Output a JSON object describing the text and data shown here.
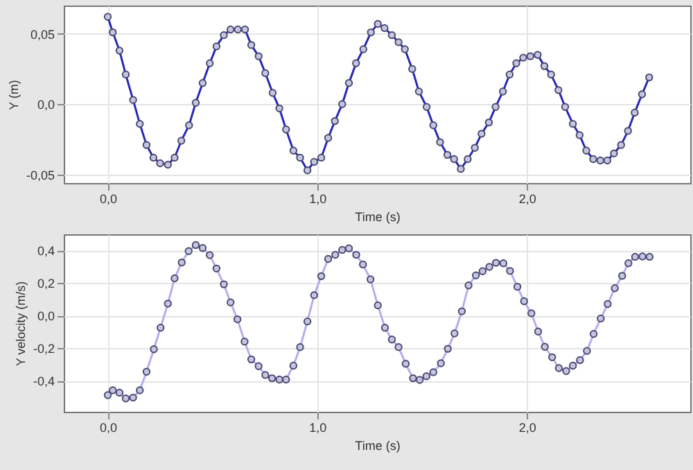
{
  "chart_data": [
    {
      "type": "line",
      "xlabel": "Time (s)",
      "ylabel": "Y (m)",
      "marker": "circle",
      "grid": true,
      "xlim": [
        -0.21,
        2.78
      ],
      "ylim": [
        -0.056,
        0.07
      ],
      "xticks": [
        {
          "value": 0,
          "label": "0,0"
        },
        {
          "value": 1,
          "label": "1,0"
        },
        {
          "value": 2,
          "label": "2,0"
        }
      ],
      "yticks": [
        {
          "value": -0.05,
          "label": "-0,05"
        },
        {
          "value": 0,
          "label": "0,0"
        },
        {
          "value": 0.05,
          "label": "0,05"
        }
      ],
      "series": [
        {
          "color": "#2828b8",
          "x": [
            0,
            0.024,
            0.056,
            0.086,
            0.121,
            0.153,
            0.185,
            0.218,
            0.25,
            0.287,
            0.319,
            0.351,
            0.388,
            0.42,
            0.453,
            0.487,
            0.519,
            0.554,
            0.586,
            0.621,
            0.655,
            0.685,
            0.72,
            0.752,
            0.787,
            0.819,
            0.851,
            0.886,
            0.918,
            0.953,
            0.985,
            1.019,
            1.052,
            1.084,
            1.119,
            1.151,
            1.185,
            1.22,
            1.256,
            1.289,
            1.321,
            1.356,
            1.388,
            1.418,
            1.453,
            1.485,
            1.522,
            1.554,
            1.586,
            1.621,
            1.653,
            1.685,
            1.718,
            1.752,
            1.784,
            1.819,
            1.851,
            1.886,
            1.918,
            1.95,
            1.983,
            2.017,
            2.052,
            2.084,
            2.116,
            2.151,
            2.183,
            2.22,
            2.252,
            2.284,
            2.317,
            2.351,
            2.384,
            2.416,
            2.45,
            2.483,
            2.515,
            2.55,
            2.584
          ],
          "values": [
            0.062,
            0.051,
            0.038,
            0.021,
            0.003,
            -0.014,
            -0.029,
            -0.038,
            -0.042,
            -0.043,
            -0.038,
            -0.026,
            -0.015,
            0.001,
            0.015,
            0.029,
            0.041,
            0.049,
            0.053,
            0.053,
            0.053,
            0.042,
            0.034,
            0.022,
            0.008,
            -0.003,
            -0.018,
            -0.033,
            -0.038,
            -0.047,
            -0.041,
            -0.038,
            -0.024,
            -0.012,
            0.0,
            0.015,
            0.029,
            0.039,
            0.051,
            0.057,
            0.054,
            0.049,
            0.044,
            0.039,
            0.025,
            0.009,
            -0.002,
            -0.015,
            -0.027,
            -0.036,
            -0.039,
            -0.046,
            -0.039,
            -0.031,
            -0.021,
            -0.013,
            -0.002,
            0.009,
            0.021,
            0.029,
            0.033,
            0.034,
            0.035,
            0.027,
            0.021,
            0.01,
            -0.002,
            -0.014,
            -0.022,
            -0.033,
            -0.039,
            -0.04,
            -0.04,
            -0.035,
            -0.029,
            -0.019,
            -0.006,
            0.007,
            0.019
          ]
        }
      ]
    },
    {
      "type": "line",
      "xlabel": "Time (s)",
      "ylabel": "Y velocity (m/s)",
      "marker": "circle",
      "grid": true,
      "xlim": [
        -0.21,
        2.78
      ],
      "ylim": [
        -0.59,
        0.5
      ],
      "xticks": [
        {
          "value": 0,
          "label": "0,0"
        },
        {
          "value": 1,
          "label": "1,0"
        },
        {
          "value": 2,
          "label": "2,0"
        }
      ],
      "yticks": [
        {
          "value": -0.4,
          "label": "-0,4"
        },
        {
          "value": -0.2,
          "label": "-0,2"
        },
        {
          "value": 0,
          "label": "0,0"
        },
        {
          "value": 0.2,
          "label": "0,2"
        },
        {
          "value": 0.4,
          "label": "0,4"
        }
      ],
      "series": [
        {
          "color": "#b4aef0",
          "x": [
            0,
            0.024,
            0.056,
            0.086,
            0.121,
            0.153,
            0.185,
            0.22,
            0.252,
            0.287,
            0.319,
            0.353,
            0.386,
            0.42,
            0.453,
            0.487,
            0.519,
            0.554,
            0.586,
            0.619,
            0.653,
            0.685,
            0.72,
            0.752,
            0.784,
            0.819,
            0.851,
            0.886,
            0.918,
            0.953,
            0.985,
            1.019,
            1.052,
            1.086,
            1.119,
            1.151,
            1.186,
            1.218,
            1.254,
            1.289,
            1.323,
            1.356,
            1.388,
            1.422,
            1.457,
            1.489,
            1.521,
            1.554,
            1.59,
            1.623,
            1.655,
            1.69,
            1.722,
            1.757,
            1.789,
            1.821,
            1.853,
            1.888,
            1.92,
            1.955,
            1.987,
            2.022,
            2.054,
            2.086,
            2.121,
            2.153,
            2.188,
            2.22,
            2.254,
            2.287,
            2.319,
            2.353,
            2.386,
            2.42,
            2.455,
            2.485,
            2.517,
            2.552,
            2.586
          ],
          "values": [
            -0.488,
            -0.458,
            -0.473,
            -0.508,
            -0.503,
            -0.458,
            -0.344,
            -0.206,
            -0.074,
            0.074,
            0.23,
            0.327,
            0.397,
            0.434,
            0.416,
            0.372,
            0.29,
            0.193,
            0.082,
            -0.022,
            -0.159,
            -0.268,
            -0.31,
            -0.364,
            -0.384,
            -0.392,
            -0.392,
            -0.307,
            -0.193,
            -0.035,
            0.126,
            0.243,
            0.349,
            0.374,
            0.404,
            0.414,
            0.374,
            0.315,
            0.223,
            0.064,
            -0.074,
            -0.146,
            -0.193,
            -0.295,
            -0.384,
            -0.394,
            -0.372,
            -0.347,
            -0.292,
            -0.203,
            -0.109,
            0.027,
            0.186,
            0.248,
            0.273,
            0.3,
            0.325,
            0.322,
            0.275,
            0.178,
            0.089,
            0.015,
            -0.097,
            -0.191,
            -0.255,
            -0.322,
            -0.34,
            -0.307,
            -0.273,
            -0.216,
            -0.112,
            -0.017,
            0.072,
            0.169,
            0.245,
            0.322,
            0.362,
            0.364,
            0.362
          ]
        }
      ]
    }
  ]
}
